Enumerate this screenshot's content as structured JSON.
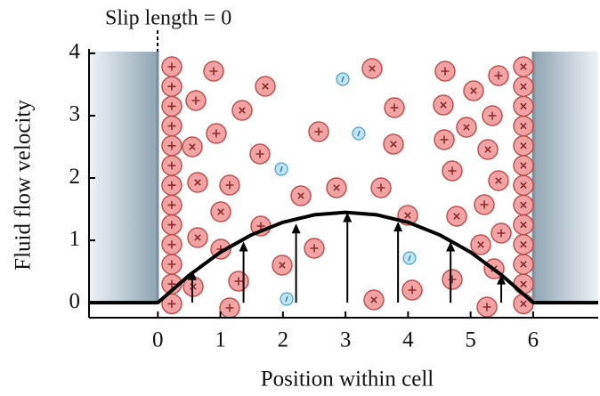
{
  "chart_data": {
    "type": "line",
    "title": "Slip length = 0",
    "x_label": "Position within cell",
    "y_label": "Fluid flow velocity",
    "x": [
      -1.1,
      0,
      0.5,
      1,
      1.5,
      2,
      2.5,
      3,
      3.5,
      4,
      4.5,
      5,
      5.5,
      6,
      7.04
    ],
    "values": [
      0,
      0,
      0.44,
      0.81,
      1.09,
      1.29,
      1.41,
      1.45,
      1.41,
      1.29,
      1.09,
      0.81,
      0.44,
      0,
      0
    ],
    "color": "#000000",
    "arrows": {
      "x": [
        0.55,
        1.37,
        2.21,
        3.03,
        3.84,
        4.68,
        5.49
      ],
      "values": [
        0.52,
        0.98,
        1.27,
        1.45,
        1.3,
        0.98,
        0.45
      ]
    },
    "xlim": [
      -1.1,
      7.04
    ],
    "ylim": [
      -0.24,
      4.07
    ],
    "xticks": [
      0,
      1,
      2,
      3,
      4,
      5,
      6
    ],
    "yticks": [
      0,
      1,
      2,
      3,
      4
    ]
  }
}
